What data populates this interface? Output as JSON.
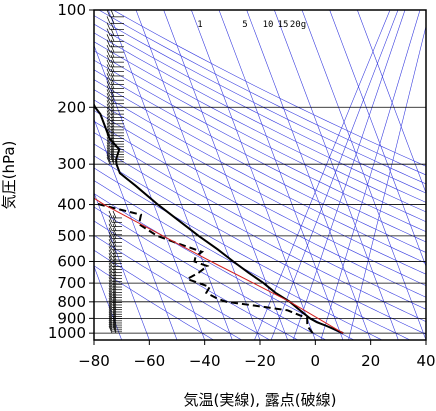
{
  "chart_data": {
    "type": "line",
    "y_scale": "log",
    "x_tick_labels": [
      "−80",
      "−60",
      "−40",
      "−20",
      "0",
      "20",
      "40"
    ],
    "x_ticks": [
      -80,
      -60,
      -40,
      -20,
      0,
      20,
      40
    ],
    "y_tick_labels": [
      "100",
      "200",
      "300",
      "400",
      "500",
      "600",
      "700",
      "800",
      "900",
      "1000"
    ],
    "y_ticks": [
      100,
      200,
      300,
      400,
      500,
      600,
      700,
      800,
      900,
      1000
    ],
    "xlim": [
      -80,
      40
    ],
    "ylim": [
      1050,
      100
    ],
    "xlabel": "気温(実線), 露点(破線)",
    "ylabel": "気圧(hPa)",
    "mixing_ratio_labels": [
      "1",
      "5",
      "10",
      "15",
      "20g"
    ],
    "colors": {
      "isopleths": "#3a3fe0",
      "parcel": "#d42020",
      "profile": "#000000",
      "grid": "#000000"
    },
    "series": [
      {
        "style": "solid",
        "points": [
          [
            1000,
            11
          ],
          [
            950,
            6
          ],
          [
            925,
            3
          ],
          [
            900,
            1
          ],
          [
            850,
            -1.5
          ],
          [
            800,
            -4
          ],
          [
            750,
            -8
          ],
          [
            700,
            -11
          ],
          [
            650,
            -15
          ],
          [
            600,
            -19
          ],
          [
            550,
            -23
          ],
          [
            500,
            -28
          ],
          [
            450,
            -33
          ],
          [
            400,
            -38.5
          ],
          [
            350,
            -44
          ],
          [
            320,
            -48
          ],
          [
            300,
            -48
          ],
          [
            290,
            -47.5
          ],
          [
            270,
            -45
          ],
          [
            260,
            -46
          ],
          [
            250,
            -47
          ],
          [
            230,
            -47
          ],
          [
            210,
            -47
          ],
          [
            200,
            -48
          ],
          [
            180,
            -48.5
          ],
          [
            160,
            -50
          ],
          [
            140,
            -52
          ],
          [
            120,
            -55
          ],
          [
            105,
            -58
          ],
          [
            100,
            -59
          ]
        ]
      },
      {
        "style": "dashed",
        "points": [
          [
            1000,
            0
          ],
          [
            950,
            -1
          ],
          [
            900,
            0
          ],
          [
            850,
            -6
          ],
          [
            820,
            -18
          ],
          [
            800,
            -27
          ],
          [
            780,
            -30
          ],
          [
            750,
            -33
          ],
          [
            720,
            -31
          ],
          [
            680,
            -38
          ],
          [
            650,
            -33
          ],
          [
            620,
            -29
          ],
          [
            600,
            -33
          ],
          [
            580,
            -32
          ],
          [
            560,
            -29
          ],
          [
            530,
            -36
          ],
          [
            500,
            -43
          ],
          [
            460,
            -48
          ],
          [
            430,
            -46
          ],
          [
            410,
            -55
          ],
          [
            390,
            -64
          ],
          [
            385,
            -79
          ]
        ]
      },
      {
        "style": "parcel",
        "points": [
          [
            1000,
            11
          ],
          [
            800,
            -4
          ],
          [
            600,
            -27
          ],
          [
            400,
            -58
          ],
          [
            230,
            -91
          ]
        ]
      }
    ]
  }
}
